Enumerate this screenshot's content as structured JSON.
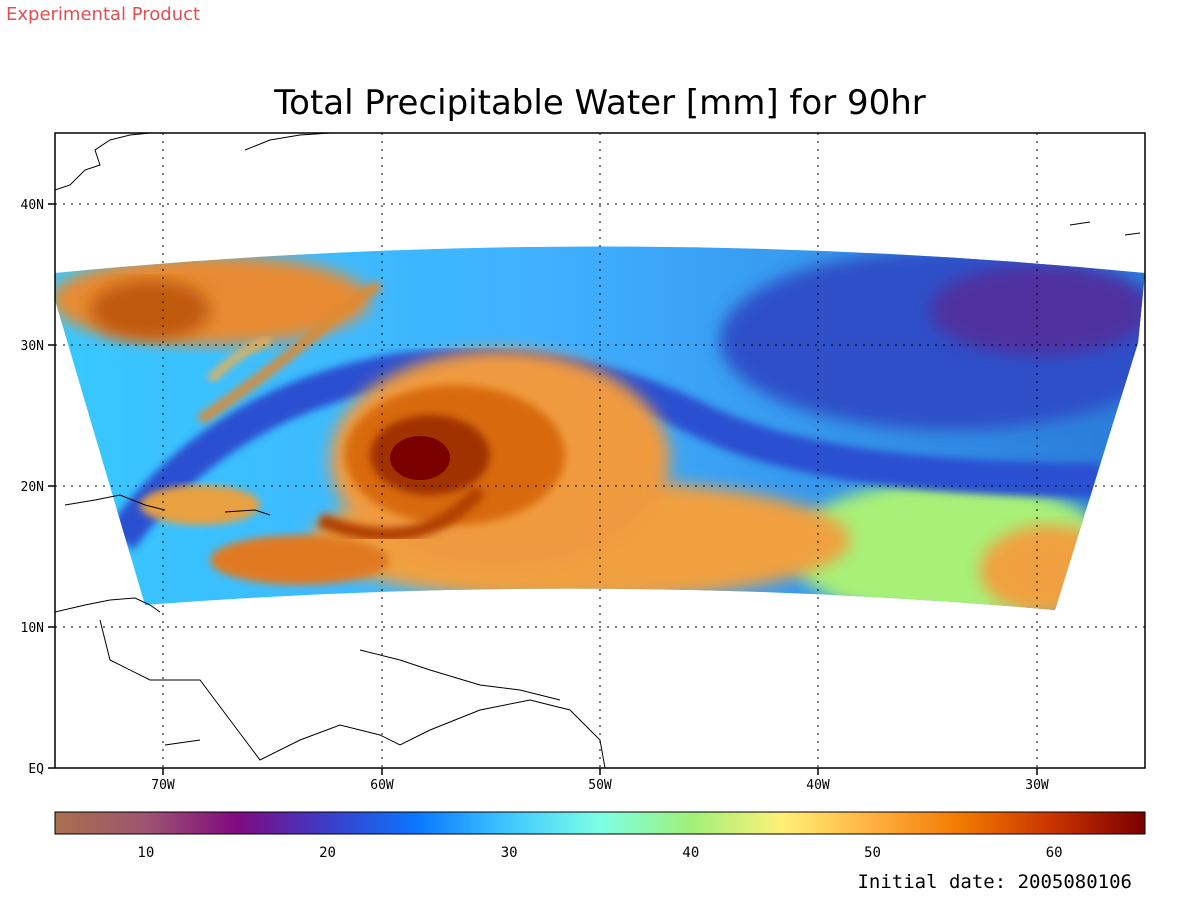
{
  "header": {
    "experimental_label": "Experimental Product",
    "experimental_color": "#e05050"
  },
  "title": "Total Precipitable Water [mm] for 90hr",
  "map": {
    "lon_labels": [
      "70W",
      "60W",
      "50W",
      "40W",
      "30W"
    ],
    "lat_labels": [
      "40N",
      "30N",
      "20N",
      "10N",
      "EQ"
    ],
    "grid": "dotted",
    "extent": {
      "lon": [
        -75,
        -25
      ],
      "lat": [
        0,
        45
      ]
    }
  },
  "colorbar": {
    "ticks": [
      "10",
      "20",
      "30",
      "40",
      "50",
      "60"
    ],
    "range": [
      5,
      65
    ],
    "stops": [
      "#a8704f",
      "#9d5470",
      "#800a80",
      "#3c3cc8",
      "#0a78ff",
      "#40c8ff",
      "#7cffe6",
      "#a0f07a",
      "#fff078",
      "#ffb040",
      "#f07800",
      "#c83200",
      "#7a0000"
    ]
  },
  "footer": {
    "initial_date": "Initial date: 2005080106"
  }
}
